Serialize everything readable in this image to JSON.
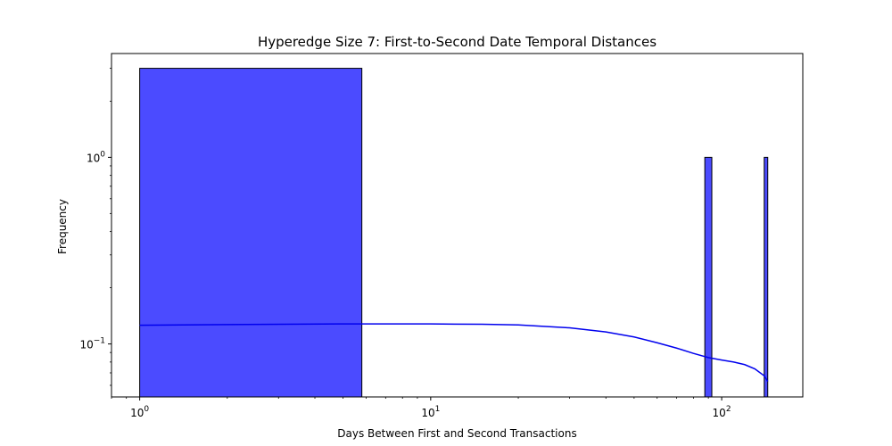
{
  "chart_data": {
    "type": "bar",
    "title": "Hyperedge Size 7: First-to-Second Date Temporal Distances",
    "xlabel": "Days Between First and Second Transactions",
    "ylabel": "Frequency",
    "x_scale": "log",
    "y_scale": "log",
    "xlim": [
      0.8,
      190
    ],
    "ylim": [
      0.052,
      3.6
    ],
    "grid": false,
    "bar_color": "#4b4bff",
    "kde_color": "#0000ee",
    "x_ticks": [
      {
        "value": 1,
        "base": "10",
        "exp": "0"
      },
      {
        "value": 10,
        "base": "10",
        "exp": "1"
      },
      {
        "value": 100,
        "base": "10",
        "exp": "2"
      }
    ],
    "y_ticks": [
      {
        "value": 0.1,
        "base": "10",
        "exp": "−1"
      },
      {
        "value": 1,
        "base": "10",
        "exp": "0"
      }
    ],
    "bins": [
      {
        "x_start": 1,
        "x_end": 5.8,
        "count": 3
      },
      {
        "x_start": 87.5,
        "x_end": 92.5,
        "count": 1
      },
      {
        "x_start": 140,
        "x_end": 144,
        "count": 1
      }
    ],
    "kde": {
      "x": [
        1,
        2,
        5,
        10,
        15,
        20,
        30,
        40,
        50,
        60,
        70,
        80,
        90,
        100,
        110,
        120,
        130,
        140,
        144
      ],
      "y": [
        0.126,
        0.127,
        0.128,
        0.128,
        0.1275,
        0.1265,
        0.122,
        0.116,
        0.109,
        0.1015,
        0.095,
        0.089,
        0.0845,
        0.082,
        0.08,
        0.0775,
        0.0735,
        0.0675,
        0.063
      ]
    }
  }
}
